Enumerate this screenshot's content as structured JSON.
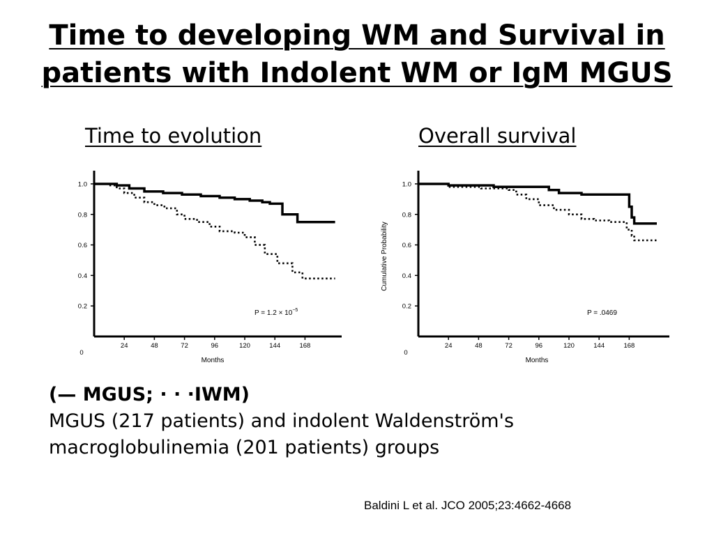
{
  "slide": {
    "title_line1": "Time to developing WM and Survival in",
    "title_line2": "patients with Indolent WM or IgM MGUS",
    "caption_legend_open": "(",
    "caption_legend_solid_glyph": "—",
    "caption_legend_mgus": " MGUS; ",
    "caption_legend_dotted_glyph": "· · ·",
    "caption_legend_iwm": "IWM)",
    "caption_line2": "MGUS (217 patients) and indolent Waldenström's",
    "caption_line3": "macroglobulinemia (201 patients) groups",
    "citation": "Baldini L et al. JCO 2005;23:4662-4668"
  },
  "colors": {
    "line": "#000000",
    "background": "#ffffff"
  },
  "chart_data": [
    {
      "type": "line",
      "title": "Time to evolution",
      "xlabel": "Months",
      "ylabel": "",
      "x_origin_label": "0",
      "xticks": [
        24,
        48,
        72,
        96,
        120,
        144,
        168
      ],
      "yticks": [
        0.2,
        0.4,
        0.6,
        0.8,
        1.0
      ],
      "ytick_labels": [
        "0.2",
        "0.4",
        "0.6",
        "0.8",
        "1.0"
      ],
      "xlim": [
        0,
        200
      ],
      "ylim": [
        0,
        1.05
      ],
      "annotation": "P = 1.2 × 10",
      "annotation_superscript": "−5",
      "legend": "none",
      "grid": false,
      "series": [
        {
          "name": "MGUS",
          "style": "solid",
          "points": [
            [
              0,
              1.0
            ],
            [
              12,
              1.0
            ],
            [
              18,
              0.99
            ],
            [
              28,
              0.97
            ],
            [
              40,
              0.95
            ],
            [
              55,
              0.94
            ],
            [
              70,
              0.93
            ],
            [
              85,
              0.92
            ],
            [
              100,
              0.91
            ],
            [
              112,
              0.9
            ],
            [
              124,
              0.89
            ],
            [
              134,
              0.88
            ],
            [
              140,
              0.87
            ],
            [
              150,
              0.8
            ],
            [
              162,
              0.75
            ],
            [
              175,
              0.75
            ],
            [
              192,
              0.75
            ]
          ]
        },
        {
          "name": "IWM",
          "style": "dotted",
          "points": [
            [
              0,
              1.0
            ],
            [
              12,
              0.99
            ],
            [
              18,
              0.97
            ],
            [
              24,
              0.94
            ],
            [
              32,
              0.91
            ],
            [
              40,
              0.88
            ],
            [
              48,
              0.86
            ],
            [
              56,
              0.84
            ],
            [
              66,
              0.8
            ],
            [
              72,
              0.77
            ],
            [
              82,
              0.75
            ],
            [
              92,
              0.72
            ],
            [
              100,
              0.69
            ],
            [
              112,
              0.68
            ],
            [
              120,
              0.65
            ],
            [
              128,
              0.6
            ],
            [
              136,
              0.54
            ],
            [
              146,
              0.48
            ],
            [
              158,
              0.42
            ],
            [
              166,
              0.38
            ],
            [
              180,
              0.38
            ],
            [
              192,
              0.38
            ]
          ]
        }
      ]
    },
    {
      "type": "line",
      "title": "Overall survival",
      "xlabel": "Months",
      "ylabel": "Cumulative Probability",
      "x_origin_label": "0",
      "xticks": [
        24,
        48,
        72,
        96,
        120,
        144,
        168
      ],
      "yticks": [
        0.2,
        0.4,
        0.6,
        0.8,
        1.0
      ],
      "ytick_labels": [
        "0.2",
        "0.4",
        "0.6",
        "0.8",
        "1.0"
      ],
      "xlim": [
        0,
        200
      ],
      "ylim": [
        0,
        1.05
      ],
      "annotation": "P = .0469",
      "annotation_superscript": "",
      "legend": "none",
      "grid": false,
      "series": [
        {
          "name": "MGUS",
          "style": "solid",
          "points": [
            [
              0,
              1.0
            ],
            [
              24,
              0.99
            ],
            [
              60,
              0.98
            ],
            [
              96,
              0.98
            ],
            [
              104,
              0.96
            ],
            [
              112,
              0.94
            ],
            [
              130,
              0.93
            ],
            [
              150,
              0.93
            ],
            [
              167,
              0.93
            ],
            [
              168,
              0.85
            ],
            [
              170,
              0.78
            ],
            [
              172,
              0.74
            ],
            [
              190,
              0.74
            ]
          ]
        },
        {
          "name": "IWM",
          "style": "dotted",
          "points": [
            [
              0,
              1.0
            ],
            [
              24,
              0.98
            ],
            [
              50,
              0.97
            ],
            [
              72,
              0.96
            ],
            [
              78,
              0.93
            ],
            [
              86,
              0.9
            ],
            [
              96,
              0.86
            ],
            [
              108,
              0.83
            ],
            [
              120,
              0.8
            ],
            [
              130,
              0.77
            ],
            [
              140,
              0.76
            ],
            [
              152,
              0.75
            ],
            [
              164,
              0.75
            ],
            [
              166,
              0.7
            ],
            [
              170,
              0.66
            ],
            [
              172,
              0.63
            ],
            [
              190,
              0.63
            ]
          ]
        }
      ]
    }
  ]
}
